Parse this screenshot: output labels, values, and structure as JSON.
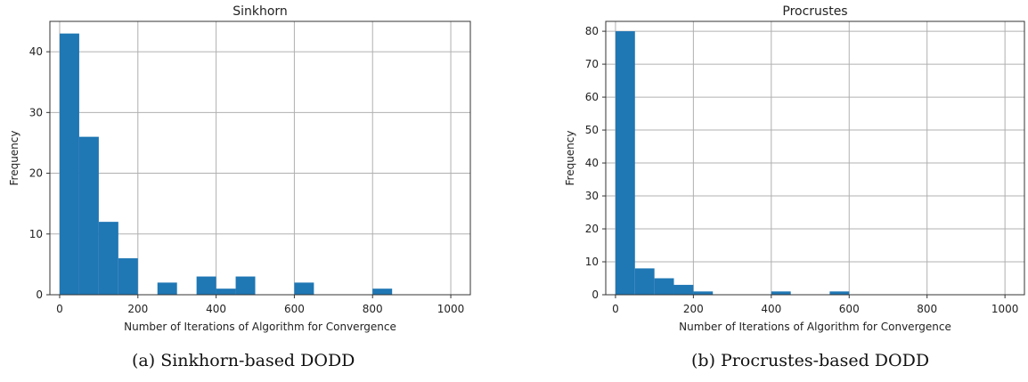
{
  "chart_data": [
    {
      "type": "bar",
      "title": "Sinkhorn",
      "xlabel": "Number of Iterations of Algorithm for Convergence",
      "ylabel": "Frequency",
      "xlim": [
        -25,
        1050
      ],
      "ylim": [
        0,
        45
      ],
      "xticks": [
        0,
        200,
        400,
        600,
        800,
        1000
      ],
      "yticks": [
        0,
        10,
        20,
        30,
        40
      ],
      "grid": true,
      "bin_width": 50,
      "bins": [
        {
          "x0": 0,
          "value": 43
        },
        {
          "x0": 50,
          "value": 26
        },
        {
          "x0": 100,
          "value": 12
        },
        {
          "x0": 150,
          "value": 6
        },
        {
          "x0": 250,
          "value": 2
        },
        {
          "x0": 350,
          "value": 3
        },
        {
          "x0": 400,
          "value": 1
        },
        {
          "x0": 450,
          "value": 3
        },
        {
          "x0": 600,
          "value": 2
        },
        {
          "x0": 800,
          "value": 1
        }
      ],
      "bar_color": "#1f77b4",
      "caption": "(a) Sinkhorn-based DODD"
    },
    {
      "type": "bar",
      "title": "Procrustes",
      "xlabel": "Number of Iterations of Algorithm for Convergence",
      "ylabel": "Frequency",
      "xlim": [
        -25,
        1050
      ],
      "ylim": [
        0,
        83
      ],
      "xticks": [
        0,
        200,
        400,
        600,
        800,
        1000
      ],
      "yticks": [
        0,
        10,
        20,
        30,
        40,
        50,
        60,
        70,
        80
      ],
      "grid": true,
      "bin_width": 50,
      "bins": [
        {
          "x0": 0,
          "value": 80
        },
        {
          "x0": 50,
          "value": 8
        },
        {
          "x0": 100,
          "value": 5
        },
        {
          "x0": 150,
          "value": 3
        },
        {
          "x0": 200,
          "value": 1
        },
        {
          "x0": 400,
          "value": 1
        },
        {
          "x0": 550,
          "value": 1
        }
      ],
      "bar_color": "#1f77b4",
      "caption": "(b) Procrustes-based DODD"
    }
  ]
}
